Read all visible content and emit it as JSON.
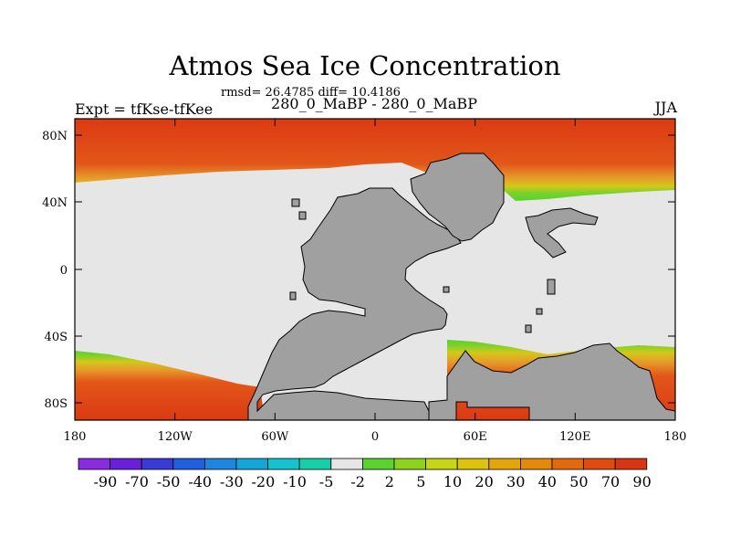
{
  "title": "Atmos Sea Ice Concentration",
  "stats": "rmsd= 26.4785 diff= 10.4186",
  "subtitle": "280_0_MaBP - 280_0_MaBP",
  "left_label": "Expt = tfKse-tfKee",
  "right_label": "JJA",
  "map": {
    "lon_ticks": [
      "180",
      "120W",
      "60W",
      "0",
      "60E",
      "120E",
      "180"
    ],
    "lat_ticks": [
      "80N",
      "40N",
      "0",
      "40S",
      "80S"
    ],
    "land_color": "#a0a0a0",
    "open_color": "#e6e6e6"
  },
  "colorbar": {
    "colors": [
      "#8a2be2",
      "#6a1fd8",
      "#3a3ad6",
      "#1f5fe0",
      "#1f86e0",
      "#13a6d6",
      "#15c3cf",
      "#16cfa8",
      "#e6e6e6",
      "#5ad230",
      "#8ed21e",
      "#c6d615",
      "#dcc40d",
      "#e2a60c",
      "#e4890b",
      "#e4690d",
      "#e04b10",
      "#d83612"
    ],
    "labels": [
      "-90",
      "-70",
      "-50",
      "-40",
      "-30",
      "-20",
      "-10",
      "-5",
      "-2",
      "2",
      "5",
      "10",
      "20",
      "30",
      "40",
      "50",
      "70",
      "90"
    ]
  }
}
